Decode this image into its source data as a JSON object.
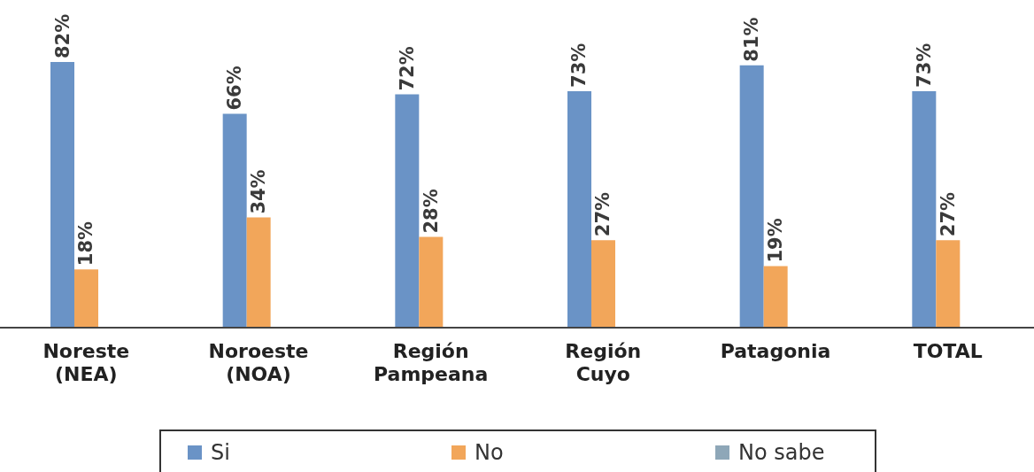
{
  "chart_data": {
    "type": "bar",
    "categories": [
      "Noreste (NEA)",
      "Noroeste (NOA)",
      "Región Pampeana",
      "Región Cuyo",
      "Patagonia",
      "TOTAL"
    ],
    "series": [
      {
        "name": "Si",
        "color": "#6a93c6",
        "values": [
          82,
          66,
          72,
          73,
          81,
          73
        ],
        "value_labels": [
          "82%",
          "66%",
          "72%",
          "73%",
          "81%",
          "73%"
        ]
      },
      {
        "name": "No",
        "color": "#f2a65a",
        "values": [
          18,
          34,
          28,
          27,
          19,
          27
        ],
        "value_labels": [
          "18%",
          "34%",
          "28%",
          "27%",
          "19%",
          "27%"
        ]
      },
      {
        "name": "No sabe",
        "color": "#8ea7b8",
        "values": [
          null,
          null,
          null,
          null,
          null,
          null
        ]
      }
    ],
    "legend": "bottom",
    "grid": false
  }
}
